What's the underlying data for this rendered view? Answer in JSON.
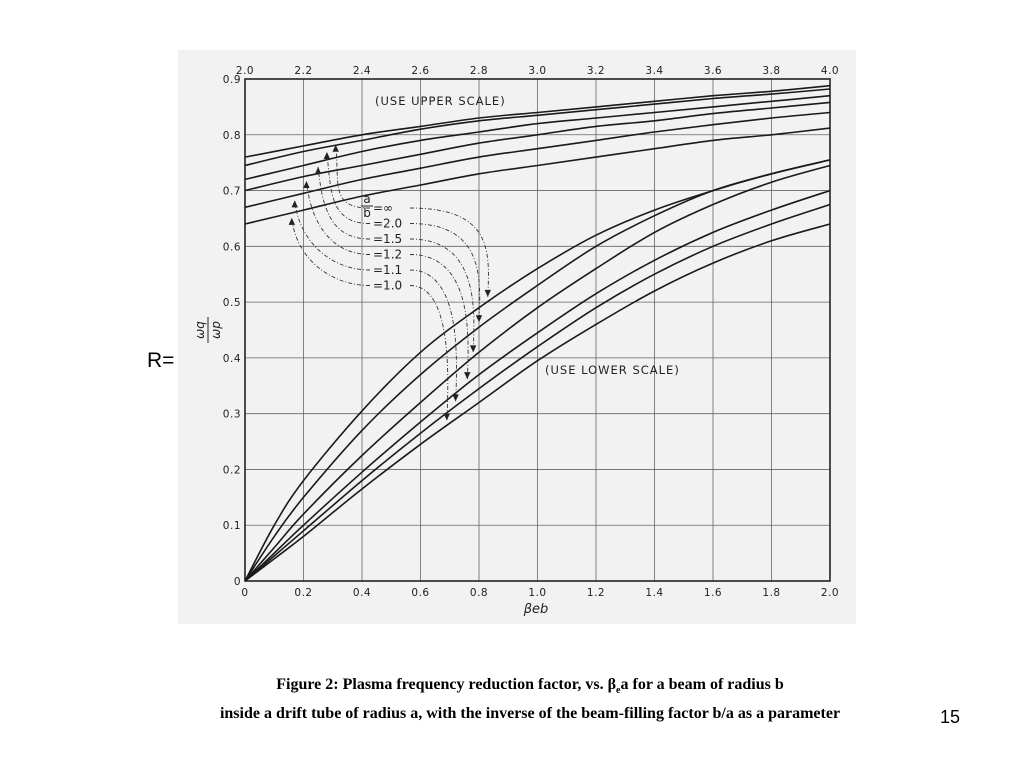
{
  "slide": {
    "r_label": "R=",
    "caption_line1_pre": "Figure 2:  Plasma frequency reduction factor, vs. ",
    "caption_beta": "β",
    "caption_beta_sub": "e",
    "caption_line1_post": "a for a beam of radius b",
    "caption_line2": "inside a drift tube of radius a, with the inverse of the beam-filling factor b/a as a parameter",
    "page_number": "15"
  },
  "chart_data": {
    "type": "line",
    "ylabel_num": "ωq",
    "ylabel_den": "ωp",
    "xlabel": "βeb",
    "upper_scale_note": "(USE UPPER SCALE)",
    "lower_scale_note": "(USE LOWER SCALE)",
    "x_lower_lim": [
      0,
      2.0
    ],
    "x_upper_lim": [
      2.0,
      4.0
    ],
    "ylim": [
      0,
      0.9
    ],
    "grid": true,
    "x_lower_ticks": [
      "0",
      "0.2",
      "0.4",
      "0.6",
      "0.8",
      "1.0",
      "1.2",
      "1.4",
      "1.6",
      "1.8",
      "2.0"
    ],
    "x_upper_ticks": [
      "2.0",
      "2.2",
      "2.4",
      "2.6",
      "2.8",
      "3.0",
      "3.2",
      "3.4",
      "3.6",
      "3.8",
      "4.0"
    ],
    "y_ticks": [
      "0",
      "0.1",
      "0.2",
      "0.3",
      "0.4",
      "0.5",
      "0.6",
      "0.7",
      "0.8",
      "0.9"
    ],
    "legend_prefix": "=",
    "legend_frac_num": "a",
    "legend_frac_den": "b",
    "series": [
      {
        "name": "∞",
        "upper_label": "=∞",
        "lower": [
          [
            0,
            0
          ],
          [
            0.1,
            0.1
          ],
          [
            0.2,
            0.18
          ],
          [
            0.4,
            0.305
          ],
          [
            0.6,
            0.41
          ],
          [
            0.8,
            0.49
          ],
          [
            1.0,
            0.56
          ],
          [
            1.2,
            0.62
          ],
          [
            1.4,
            0.665
          ],
          [
            1.6,
            0.7
          ],
          [
            1.8,
            0.73
          ],
          [
            2.0,
            0.755
          ]
        ],
        "upper": [
          [
            2.0,
            0.76
          ],
          [
            2.2,
            0.78
          ],
          [
            2.4,
            0.8
          ],
          [
            2.6,
            0.815
          ],
          [
            2.8,
            0.83
          ],
          [
            3.0,
            0.84
          ],
          [
            3.2,
            0.85
          ],
          [
            3.4,
            0.86
          ],
          [
            3.6,
            0.87
          ],
          [
            3.8,
            0.878
          ],
          [
            4.0,
            0.888
          ]
        ]
      },
      {
        "name": "2.0",
        "upper_label": "=2.0",
        "lower": [
          [
            0,
            0
          ],
          [
            0.1,
            0.08
          ],
          [
            0.2,
            0.15
          ],
          [
            0.4,
            0.27
          ],
          [
            0.6,
            0.37
          ],
          [
            0.8,
            0.455
          ],
          [
            1.0,
            0.53
          ],
          [
            1.2,
            0.6
          ],
          [
            1.4,
            0.655
          ],
          [
            1.6,
            0.7
          ],
          [
            1.8,
            0.73
          ],
          [
            2.0,
            0.755
          ]
        ],
        "upper": [
          [
            2.0,
            0.745
          ],
          [
            2.2,
            0.77
          ],
          [
            2.4,
            0.79
          ],
          [
            2.6,
            0.81
          ],
          [
            2.8,
            0.825
          ],
          [
            3.0,
            0.835
          ],
          [
            3.2,
            0.845
          ],
          [
            3.4,
            0.855
          ],
          [
            3.6,
            0.865
          ],
          [
            3.8,
            0.873
          ],
          [
            4.0,
            0.882
          ]
        ]
      },
      {
        "name": "1.5",
        "upper_label": "=1.5",
        "lower": [
          [
            0,
            0
          ],
          [
            0.1,
            0.06
          ],
          [
            0.2,
            0.12
          ],
          [
            0.4,
            0.225
          ],
          [
            0.6,
            0.32
          ],
          [
            0.8,
            0.41
          ],
          [
            1.0,
            0.49
          ],
          [
            1.2,
            0.56
          ],
          [
            1.4,
            0.625
          ],
          [
            1.6,
            0.675
          ],
          [
            1.8,
            0.715
          ],
          [
            2.0,
            0.745
          ]
        ],
        "upper": [
          [
            2.0,
            0.72
          ],
          [
            2.2,
            0.745
          ],
          [
            2.4,
            0.77
          ],
          [
            2.6,
            0.79
          ],
          [
            2.8,
            0.805
          ],
          [
            3.0,
            0.82
          ],
          [
            3.2,
            0.83
          ],
          [
            3.4,
            0.84
          ],
          [
            3.6,
            0.85
          ],
          [
            3.8,
            0.86
          ],
          [
            4.0,
            0.87
          ]
        ]
      },
      {
        "name": "1.2",
        "upper_label": "=1.2",
        "lower": [
          [
            0,
            0
          ],
          [
            0.1,
            0.05
          ],
          [
            0.2,
            0.1
          ],
          [
            0.4,
            0.195
          ],
          [
            0.6,
            0.285
          ],
          [
            0.8,
            0.37
          ],
          [
            1.0,
            0.445
          ],
          [
            1.2,
            0.515
          ],
          [
            1.4,
            0.575
          ],
          [
            1.6,
            0.625
          ],
          [
            1.8,
            0.665
          ],
          [
            2.0,
            0.7
          ]
        ],
        "upper": [
          [
            2.0,
            0.7
          ],
          [
            2.2,
            0.725
          ],
          [
            2.4,
            0.745
          ],
          [
            2.6,
            0.765
          ],
          [
            2.8,
            0.785
          ],
          [
            3.0,
            0.8
          ],
          [
            3.2,
            0.815
          ],
          [
            3.4,
            0.825
          ],
          [
            3.6,
            0.838
          ],
          [
            3.8,
            0.848
          ],
          [
            4.0,
            0.858
          ]
        ]
      },
      {
        "name": "1.1",
        "upper_label": "=1.1",
        "lower": [
          [
            0,
            0
          ],
          [
            0.1,
            0.045
          ],
          [
            0.2,
            0.09
          ],
          [
            0.4,
            0.18
          ],
          [
            0.6,
            0.265
          ],
          [
            0.8,
            0.345
          ],
          [
            1.0,
            0.42
          ],
          [
            1.2,
            0.49
          ],
          [
            1.4,
            0.55
          ],
          [
            1.6,
            0.6
          ],
          [
            1.8,
            0.64
          ],
          [
            2.0,
            0.675
          ]
        ],
        "upper": [
          [
            2.0,
            0.67
          ],
          [
            2.2,
            0.695
          ],
          [
            2.4,
            0.72
          ],
          [
            2.6,
            0.74
          ],
          [
            2.8,
            0.76
          ],
          [
            3.0,
            0.775
          ],
          [
            3.2,
            0.79
          ],
          [
            3.4,
            0.805
          ],
          [
            3.6,
            0.818
          ],
          [
            3.8,
            0.83
          ],
          [
            4.0,
            0.84
          ]
        ]
      },
      {
        "name": "1.0",
        "upper_label": "=1.0",
        "lower": [
          [
            0,
            0
          ],
          [
            0.1,
            0.04
          ],
          [
            0.2,
            0.08
          ],
          [
            0.4,
            0.165
          ],
          [
            0.6,
            0.245
          ],
          [
            0.8,
            0.32
          ],
          [
            1.0,
            0.395
          ],
          [
            1.2,
            0.46
          ],
          [
            1.4,
            0.52
          ],
          [
            1.6,
            0.57
          ],
          [
            1.8,
            0.61
          ],
          [
            2.0,
            0.64
          ]
        ],
        "upper": [
          [
            2.0,
            0.64
          ],
          [
            2.2,
            0.665
          ],
          [
            2.4,
            0.69
          ],
          [
            2.6,
            0.71
          ],
          [
            2.8,
            0.73
          ],
          [
            3.0,
            0.745
          ],
          [
            3.2,
            0.76
          ],
          [
            3.4,
            0.775
          ],
          [
            3.6,
            0.79
          ],
          [
            3.8,
            0.8
          ],
          [
            4.0,
            0.812
          ]
        ]
      }
    ]
  }
}
